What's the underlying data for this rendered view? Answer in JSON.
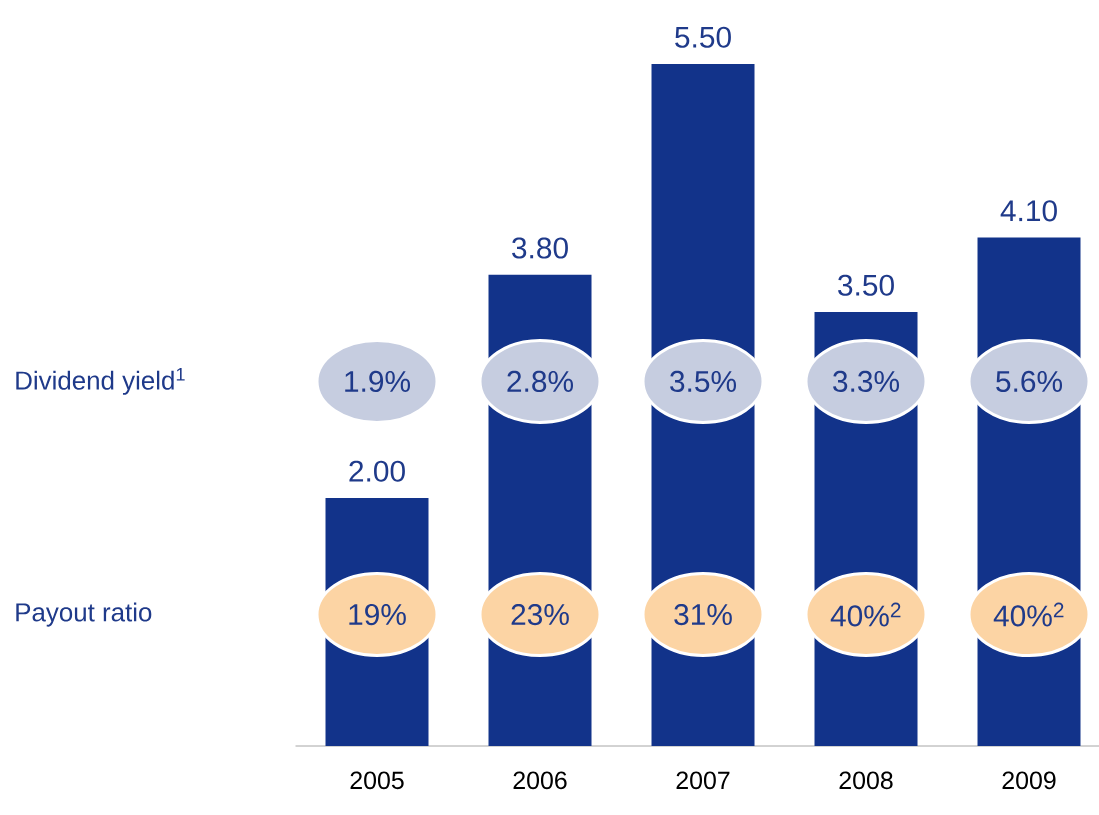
{
  "chart_data": {
    "type": "bar",
    "categories": [
      "2005",
      "2006",
      "2007",
      "2008",
      "2009"
    ],
    "values": [
      2.0,
      3.8,
      5.5,
      3.5,
      4.1
    ],
    "value_labels": [
      "2.00",
      "3.80",
      "5.50",
      "3.50",
      "4.10"
    ],
    "color": "#12338a",
    "ylim": [
      0,
      5.5
    ],
    "annotations": [
      "Dividend yield$^{1}$",
      "1.9%",
      "2.8%",
      "3.5%",
      "3.3%",
      "5.6%",
      "Payout ratio",
      "19%",
      "23%",
      "31%",
      "40%$^{2}$",
      "40%$^{2}$"
    ]
  }
}
